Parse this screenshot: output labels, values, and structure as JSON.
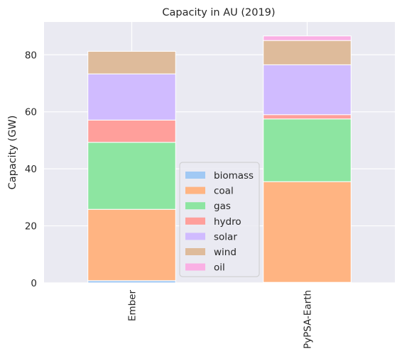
{
  "chart_data": {
    "type": "bar",
    "stacked": true,
    "title": "Capacity in AU (2019)",
    "xlabel": "",
    "ylabel": "Capacity (GW)",
    "ylim": [
      0,
      91.5
    ],
    "yticks": [
      0,
      20,
      40,
      60,
      80
    ],
    "categories": [
      "Ember",
      "PyPSA-Earth"
    ],
    "grid": true,
    "legend_position": "lower-center",
    "series": [
      {
        "name": "biomass",
        "color": "#a1c9f4",
        "values": [
          0.8,
          0.2
        ]
      },
      {
        "name": "coal",
        "color": "#ffb482",
        "values": [
          25.0,
          35.3
        ]
      },
      {
        "name": "gas",
        "color": "#8de5a1",
        "values": [
          23.5,
          22.0
        ]
      },
      {
        "name": "hydro",
        "color": "#ff9f9b",
        "values": [
          7.8,
          1.5
        ]
      },
      {
        "name": "solar",
        "color": "#d0bbff",
        "values": [
          16.2,
          17.5
        ]
      },
      {
        "name": "wind",
        "color": "#debb9b",
        "values": [
          7.9,
          8.5
        ]
      },
      {
        "name": "oil",
        "color": "#fab0e4",
        "values": [
          0.0,
          1.6
        ]
      }
    ]
  }
}
